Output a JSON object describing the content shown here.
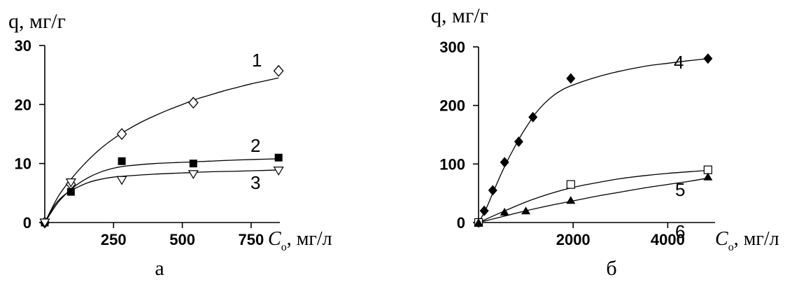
{
  "chart_data": [
    {
      "panel_label": "а",
      "type": "scatter",
      "ylabel": "q, мг/г",
      "xlabel_symbol": "C",
      "xlabel_subscript": "о",
      "xlabel_unit": ", мг/л",
      "xlim": [
        0,
        880
      ],
      "ylim": [
        0,
        30
      ],
      "xticks": [
        250,
        500,
        750
      ],
      "yticks": [
        0,
        10,
        20,
        30
      ],
      "series": [
        {
          "name": "1",
          "marker": "diamond-open",
          "x": [
            0,
            95,
            280,
            540,
            850
          ],
          "y": [
            0,
            6.5,
            15,
            20.3,
            25.7
          ],
          "fit": [
            [
              0,
              0
            ],
            [
              50,
              4.5
            ],
            [
              100,
              7.6
            ],
            [
              150,
              10.2
            ],
            [
              200,
              12.4
            ],
            [
              250,
              14.2
            ],
            [
              300,
              15.7
            ],
            [
              350,
              17.0
            ],
            [
              400,
              18.1
            ],
            [
              450,
              19.1
            ],
            [
              500,
              20.0
            ],
            [
              550,
              20.9
            ],
            [
              600,
              21.6
            ],
            [
              650,
              22.3
            ],
            [
              700,
              22.9
            ],
            [
              750,
              23.5
            ],
            [
              800,
              24.0
            ],
            [
              850,
              24.5
            ]
          ]
        },
        {
          "name": "2",
          "marker": "square-filled",
          "x": [
            0,
            95,
            280,
            540,
            850
          ],
          "y": [
            0,
            5.2,
            10.4,
            10,
            11
          ],
          "fit": [
            [
              0,
              0
            ],
            [
              50,
              3.5
            ],
            [
              100,
              5.8
            ],
            [
              150,
              7.4
            ],
            [
              200,
              8.5
            ],
            [
              250,
              9.2
            ],
            [
              300,
              9.6
            ],
            [
              400,
              10.0
            ],
            [
              500,
              10.2
            ],
            [
              600,
              10.4
            ],
            [
              700,
              10.6
            ],
            [
              850,
              10.8
            ]
          ]
        },
        {
          "name": "3",
          "marker": "triangle-down-open",
          "x": [
            0,
            95,
            280,
            540,
            850
          ],
          "y": [
            0,
            6.8,
            7.2,
            8.2,
            8.8
          ],
          "fit": [
            [
              0,
              0
            ],
            [
              40,
              3.2
            ],
            [
              80,
              5.0
            ],
            [
              120,
              6.0
            ],
            [
              160,
              6.8
            ],
            [
              200,
              7.3
            ],
            [
              250,
              7.7
            ],
            [
              300,
              7.9
            ],
            [
              400,
              8.2
            ],
            [
              500,
              8.4
            ],
            [
              600,
              8.6
            ],
            [
              700,
              8.7
            ],
            [
              850,
              8.9
            ]
          ]
        }
      ]
    },
    {
      "panel_label": "б",
      "type": "scatter",
      "ylabel": "q, мг/г",
      "xlabel_symbol": "C",
      "xlabel_subscript": "о",
      "xlabel_unit": ", мг/л",
      "xlim": [
        0,
        5000
      ],
      "ylim": [
        0,
        300
      ],
      "xticks": [
        2000,
        4000
      ],
      "yticks": [
        0,
        100,
        200,
        300
      ],
      "series": [
        {
          "name": "4",
          "marker": "diamond-filled",
          "x": [
            0,
            120,
            300,
            550,
            850,
            1150,
            1950,
            4850
          ],
          "y": [
            0,
            20,
            55,
            103,
            138,
            180,
            246,
            280
          ],
          "fit": [
            [
              0,
              0
            ],
            [
              150,
              22
            ],
            [
              300,
              50
            ],
            [
              450,
              78
            ],
            [
              600,
              104
            ],
            [
              750,
              127
            ],
            [
              900,
              149
            ],
            [
              1050,
              168
            ],
            [
              1200,
              186
            ],
            [
              1400,
              204
            ],
            [
              1600,
              218
            ],
            [
              1800,
              228
            ],
            [
              2000,
              235
            ],
            [
              2400,
              246
            ],
            [
              2800,
              255
            ],
            [
              3200,
              262
            ],
            [
              3600,
              268
            ],
            [
              4000,
              272
            ],
            [
              4400,
              276
            ],
            [
              4850,
              280
            ]
          ]
        },
        {
          "name": "5",
          "marker": "square-open",
          "x": [
            0,
            1950,
            4850
          ],
          "y": [
            0,
            65,
            90
          ],
          "fit": [
            [
              0,
              0
            ],
            [
              500,
              18
            ],
            [
              1000,
              35
            ],
            [
              1500,
              49
            ],
            [
              2000,
              60
            ],
            [
              2500,
              68
            ],
            [
              3000,
              75
            ],
            [
              3500,
              80
            ],
            [
              4000,
              84
            ],
            [
              4500,
              87
            ],
            [
              4850,
              89
            ]
          ]
        },
        {
          "name": "6",
          "marker": "triangle-up-filled",
          "x": [
            0,
            550,
            1000,
            1950,
            4850
          ],
          "y": [
            0,
            18,
            20,
            38,
            78
          ],
          "fit": [
            [
              0,
              0
            ],
            [
              500,
              10
            ],
            [
              1000,
              20
            ],
            [
              1500,
              29
            ],
            [
              2000,
              37
            ],
            [
              2500,
              45
            ],
            [
              3000,
              52
            ],
            [
              3500,
              59
            ],
            [
              4000,
              65
            ],
            [
              4500,
              71
            ],
            [
              4850,
              76
            ]
          ]
        }
      ]
    }
  ]
}
